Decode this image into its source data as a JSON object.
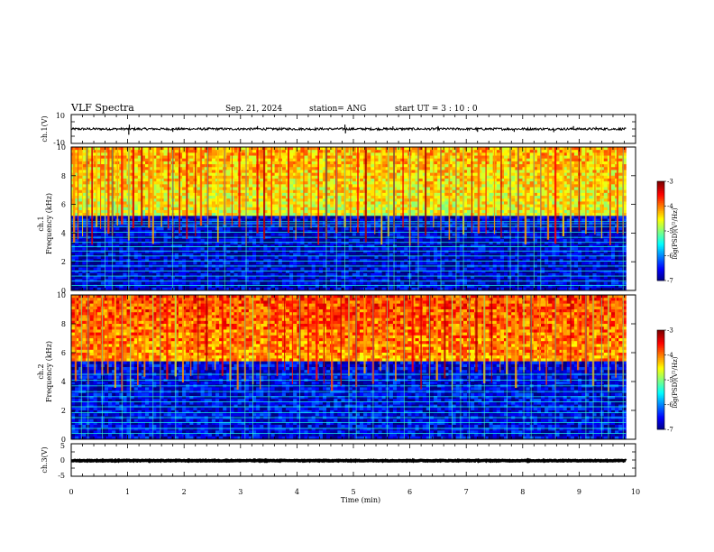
{
  "header": {
    "title": "VLF Spectra",
    "date": "Sep. 21, 2024",
    "station": "station= ANG",
    "start": "start  UT =   3  : 10 : 0"
  },
  "chart_data": [
    {
      "type": "line",
      "name": "ch1-waveform",
      "ylabel": "ch.1(V)",
      "ylim": [
        -10,
        10
      ],
      "yticks": [
        "10",
        "-10"
      ],
      "xlim": [
        0,
        10
      ],
      "x_extent": 9.83,
      "baseline": 0,
      "noise_amplitude": 1,
      "spikes": [
        {
          "x": 1.02,
          "y": -4
        },
        {
          "x": 1.03,
          "y": 3
        },
        {
          "x": 1.8,
          "y": -2
        },
        {
          "x": 3.3,
          "y": 2
        },
        {
          "x": 4.85,
          "y": 3
        },
        {
          "x": 4.86,
          "y": -3
        },
        {
          "x": 5.7,
          "y": 1.8
        },
        {
          "x": 6.5,
          "y": 2
        },
        {
          "x": 7.2,
          "y": -2
        },
        {
          "x": 7.85,
          "y": -2
        },
        {
          "x": 8.55,
          "y": -2.2
        },
        {
          "x": 8.9,
          "y": 2
        },
        {
          "x": 9.3,
          "y": 1.5
        }
      ]
    },
    {
      "type": "heatmap",
      "name": "ch1-spectrogram",
      "ylabel_line1": "ch.1",
      "ylabel_line2": "Frequency (kHz)",
      "ylim": [
        0,
        10
      ],
      "yticks": [
        "0",
        "2",
        "4",
        "6",
        "8",
        "10"
      ],
      "xlim": [
        0,
        10
      ],
      "x_extent": 9.83,
      "zlabel": "log(PSD)(V²/Hz)",
      "zlim": [
        -7,
        -3
      ],
      "zticks": [
        "-7",
        "-6",
        "-5",
        "-4",
        "-3"
      ],
      "upper_band_level": -4.6,
      "lower_band_level": -6.7,
      "transition_khz": 5.2,
      "line_frequencies_khz": [
        0.35,
        0.65,
        1.0,
        1.35,
        1.7,
        2.05,
        2.4,
        2.75,
        3.05,
        3.35,
        3.7,
        4.05,
        4.45,
        4.65,
        4.8
      ],
      "sferic_times_min": [
        0.05,
        0.12,
        0.2,
        0.28,
        0.37,
        0.45,
        0.52,
        0.6,
        0.66,
        0.73,
        0.82,
        0.9,
        1.02,
        1.1,
        1.25,
        1.38,
        1.45,
        1.6,
        1.72,
        1.8,
        1.92,
        2.05,
        2.2,
        2.3,
        2.42,
        2.6,
        2.72,
        2.85,
        2.98,
        3.1,
        3.3,
        3.42,
        3.55,
        3.7,
        3.85,
        3.98,
        4.12,
        4.25,
        4.38,
        4.52,
        4.7,
        4.85,
        4.95,
        5.08,
        5.22,
        5.38,
        5.5,
        5.62,
        5.72,
        5.88,
        6.0,
        6.15,
        6.28,
        6.42,
        6.55,
        6.7,
        6.82,
        6.95,
        7.1,
        7.22,
        7.35,
        7.5,
        7.62,
        7.78,
        7.92,
        8.05,
        8.2,
        8.32,
        8.45,
        8.58,
        8.72,
        8.85,
        9.0,
        9.12,
        9.28,
        9.4,
        9.55,
        9.68,
        9.78
      ]
    },
    {
      "type": "heatmap",
      "name": "ch2-spectrogram",
      "ylabel_line1": "ch.2",
      "ylabel_line2": "Frequency (kHz)",
      "ylim": [
        0,
        10
      ],
      "yticks": [
        "0",
        "2",
        "4",
        "6",
        "8",
        "10"
      ],
      "xlim": [
        0,
        10
      ],
      "x_extent": 9.83,
      "zlabel": "log(PSD)(V²/Hz)",
      "zlim": [
        -7,
        -3
      ],
      "zticks": [
        "-7",
        "-6",
        "-5",
        "-4",
        "-3"
      ],
      "upper_band_level": -4.1,
      "lower_band_level": -6.6,
      "transition_khz": 5.4,
      "line_frequencies_khz": [
        0.4,
        0.75,
        1.15,
        1.5,
        1.85,
        2.25,
        2.6,
        2.95,
        3.3,
        3.7,
        4.1,
        4.5
      ],
      "sferic_times_min": [
        0.08,
        0.18,
        0.3,
        0.42,
        0.55,
        0.65,
        0.78,
        0.9,
        1.05,
        1.18,
        1.3,
        1.45,
        1.58,
        1.7,
        1.85,
        1.98,
        2.12,
        2.25,
        2.4,
        2.55,
        2.68,
        2.82,
        2.95,
        3.08,
        3.22,
        3.35,
        3.5,
        3.65,
        3.78,
        3.92,
        4.05,
        4.2,
        4.35,
        4.48,
        4.62,
        4.78,
        4.92,
        5.05,
        5.2,
        5.35,
        5.48,
        5.6,
        5.75,
        5.9,
        6.05,
        6.2,
        6.35,
        6.48,
        6.62,
        6.75,
        6.9,
        7.05,
        7.18,
        7.32,
        7.45,
        7.6,
        7.72,
        7.88,
        8.02,
        8.15,
        8.3,
        8.42,
        8.58,
        8.7,
        8.85,
        8.98,
        9.12,
        9.25,
        9.4,
        9.52,
        9.65,
        9.78
      ]
    },
    {
      "type": "line",
      "name": "ch3-waveform",
      "ylabel": "ch.3(V)",
      "ylim": [
        -5,
        5
      ],
      "yticks": [
        "5",
        "0",
        "-5"
      ],
      "xlim": [
        0,
        10
      ],
      "x_extent": 9.83,
      "baseline": -0.2,
      "noise_amplitude": 0.15,
      "spikes": [],
      "xlabel": "Time  (min)",
      "xticks": [
        "0",
        "1",
        "2",
        "3",
        "4",
        "5",
        "6",
        "7",
        "8",
        "9",
        "10"
      ]
    }
  ]
}
